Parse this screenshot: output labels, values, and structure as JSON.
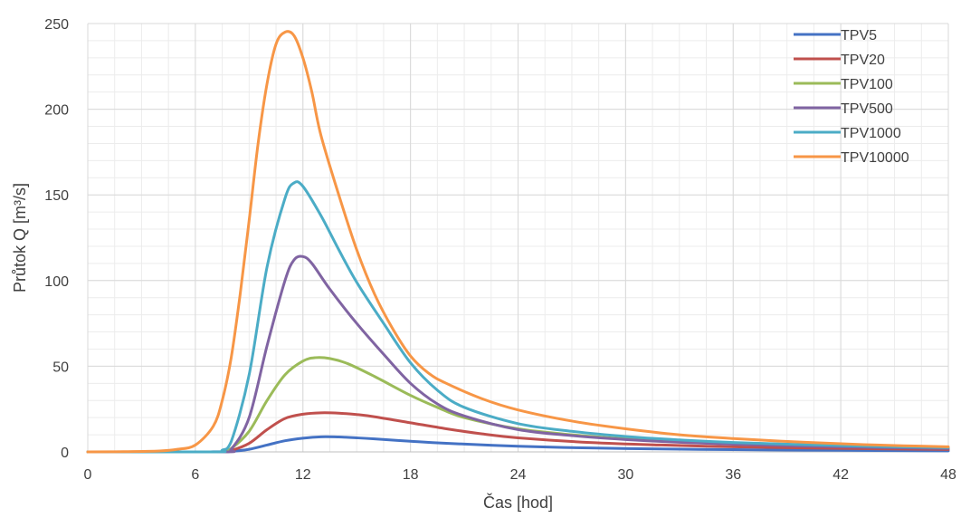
{
  "chart_data": {
    "type": "line",
    "title": "",
    "xlabel": "Čas [hod]",
    "ylabel": "Průtok Q [m³/s]",
    "xlim": [
      0,
      48
    ],
    "ylim": [
      0,
      250
    ],
    "x_ticks": [
      0,
      6,
      12,
      18,
      24,
      30,
      36,
      42,
      48
    ],
    "y_ticks": [
      0,
      50,
      100,
      150,
      200,
      250
    ],
    "x_tick_labels": [
      "0",
      "6",
      "12",
      "18",
      "24",
      "30",
      "36",
      "42",
      "48"
    ],
    "y_tick_labels": [
      "0",
      "50",
      "100",
      "150",
      "200",
      "250"
    ],
    "grid": true,
    "legend_position": "top-right",
    "series": [
      {
        "name": "TPV5",
        "color": "#4472C4",
        "points": [
          [
            0,
            0
          ],
          [
            6,
            0
          ],
          [
            7,
            0.05
          ],
          [
            8,
            0.3
          ],
          [
            9,
            1.5
          ],
          [
            10,
            4
          ],
          [
            11,
            6.5
          ],
          [
            12,
            8
          ],
          [
            13,
            8.8
          ],
          [
            14,
            8.7
          ],
          [
            15,
            8.2
          ],
          [
            16,
            7.6
          ],
          [
            18,
            6.2
          ],
          [
            20,
            5
          ],
          [
            24,
            3.3
          ],
          [
            28,
            2.3
          ],
          [
            32,
            1.7
          ],
          [
            36,
            1.3
          ],
          [
            40,
            1.0
          ],
          [
            44,
            0.8
          ],
          [
            48,
            0.6
          ]
        ]
      },
      {
        "name": "TPV20",
        "color": "#C0504D",
        "points": [
          [
            0,
            0
          ],
          [
            7,
            0
          ],
          [
            7.5,
            0.1
          ],
          [
            8,
            0.8
          ],
          [
            9,
            5
          ],
          [
            10,
            13
          ],
          [
            11,
            19.5
          ],
          [
            12,
            22
          ],
          [
            13,
            22.8
          ],
          [
            14,
            22.6
          ],
          [
            15,
            21.8
          ],
          [
            16,
            20.5
          ],
          [
            18,
            17
          ],
          [
            20,
            13.5
          ],
          [
            22,
            10.5
          ],
          [
            24,
            8.2
          ],
          [
            28,
            5.5
          ],
          [
            32,
            4
          ],
          [
            36,
            3
          ],
          [
            40,
            2.3
          ],
          [
            44,
            1.8
          ],
          [
            48,
            1.4
          ]
        ]
      },
      {
        "name": "TPV100",
        "color": "#9BBB59",
        "points": [
          [
            0,
            0
          ],
          [
            7,
            0
          ],
          [
            7.5,
            0.3
          ],
          [
            8,
            2
          ],
          [
            9,
            12
          ],
          [
            10,
            30
          ],
          [
            11,
            45
          ],
          [
            12,
            53
          ],
          [
            12.7,
            55
          ],
          [
            13.5,
            54.5
          ],
          [
            14.5,
            51.5
          ],
          [
            16,
            44
          ],
          [
            18,
            33
          ],
          [
            19.5,
            26
          ],
          [
            21,
            20
          ],
          [
            24,
            13.5
          ],
          [
            27,
            10
          ],
          [
            30,
            7.6
          ],
          [
            33,
            6
          ],
          [
            36,
            4.8
          ],
          [
            40,
            3.6
          ],
          [
            44,
            2.8
          ],
          [
            48,
            2.2
          ]
        ]
      },
      {
        "name": "TPV500",
        "color": "#8064A2",
        "points": [
          [
            0,
            0
          ],
          [
            7.5,
            0
          ],
          [
            8,
            1.5
          ],
          [
            9,
            20
          ],
          [
            10,
            62
          ],
          [
            11,
            100
          ],
          [
            11.5,
            112
          ],
          [
            12,
            114
          ],
          [
            12.5,
            110
          ],
          [
            13.5,
            95
          ],
          [
            15,
            75
          ],
          [
            16.5,
            57
          ],
          [
            18,
            40
          ],
          [
            19.5,
            28
          ],
          [
            21,
            21
          ],
          [
            24,
            13
          ],
          [
            27,
            9.5
          ],
          [
            30,
            7.2
          ],
          [
            33,
            5.6
          ],
          [
            36,
            4.5
          ],
          [
            40,
            3.4
          ],
          [
            44,
            2.6
          ],
          [
            48,
            2
          ]
        ]
      },
      {
        "name": "TPV1000",
        "color": "#4BACC6",
        "points": [
          [
            0,
            0
          ],
          [
            7,
            0
          ],
          [
            7.5,
            1
          ],
          [
            8,
            6
          ],
          [
            9,
            45
          ],
          [
            10,
            108
          ],
          [
            11,
            148
          ],
          [
            11.5,
            157
          ],
          [
            12,
            155
          ],
          [
            13,
            138
          ],
          [
            14,
            118
          ],
          [
            15,
            99
          ],
          [
            16.5,
            75
          ],
          [
            18,
            52
          ],
          [
            19.5,
            36
          ],
          [
            21,
            26
          ],
          [
            24,
            16.5
          ],
          [
            27,
            12
          ],
          [
            30,
            9
          ],
          [
            33,
            7
          ],
          [
            36,
            5.5
          ],
          [
            40,
            4.2
          ],
          [
            44,
            3.2
          ],
          [
            48,
            2.5
          ]
        ]
      },
      {
        "name": "TPV10000",
        "color": "#F79646",
        "points": [
          [
            0,
            0
          ],
          [
            2,
            0.1
          ],
          [
            4,
            0.5
          ],
          [
            5,
            1.5
          ],
          [
            6,
            4
          ],
          [
            7,
            15
          ],
          [
            7.5,
            30
          ],
          [
            8,
            55
          ],
          [
            8.5,
            92
          ],
          [
            9,
            135
          ],
          [
            9.5,
            180
          ],
          [
            10,
            215
          ],
          [
            10.5,
            238
          ],
          [
            11,
            245
          ],
          [
            11.5,
            243
          ],
          [
            12,
            230
          ],
          [
            12.5,
            210
          ],
          [
            13,
            185
          ],
          [
            14,
            150
          ],
          [
            15,
            118
          ],
          [
            16,
            92
          ],
          [
            17,
            72
          ],
          [
            18,
            56
          ],
          [
            19,
            46
          ],
          [
            20,
            40
          ],
          [
            22,
            31
          ],
          [
            24,
            24.5
          ],
          [
            27,
            18
          ],
          [
            30,
            13.5
          ],
          [
            33,
            10
          ],
          [
            36,
            7.8
          ],
          [
            40,
            5.6
          ],
          [
            44,
            4
          ],
          [
            48,
            3
          ]
        ]
      }
    ]
  }
}
